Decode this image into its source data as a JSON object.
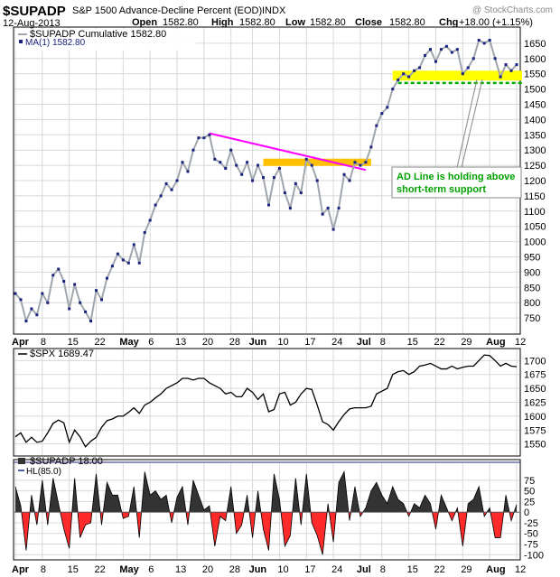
{
  "header": {
    "symbol": "$SUPADP",
    "description": "S&P 1500 Advance-Decline Percent (EOD)",
    "exchange": "INDX",
    "watermark": "@ StockCharts.com",
    "date": "12-Aug-2013",
    "open_label": "Open",
    "open": "1582.80",
    "high_label": "High",
    "high": "1582.80",
    "low_label": "Low",
    "low": "1582.80",
    "close_label": "Close",
    "close": "1582.80",
    "chg_label": "Chg",
    "chg": "+18.00 (+1.15%)"
  },
  "panels": {
    "main": {
      "legend1": "$SUPADP  Cumulative 1582.80",
      "legend2": "MA(1) 1582.80",
      "annotation_line1": "AD Line is holding above",
      "annotation_line2": "short-term support"
    },
    "spx": {
      "legend": "$SPX  1689.47"
    },
    "hl": {
      "legend1": "$SUPADP  18.00",
      "legend2": "HL(85.0)"
    }
  },
  "colors": {
    "line": "#a0a6ad",
    "marker": "#1a237e",
    "trendline": "#ff00ff",
    "resistance_box": "#ffc000",
    "support_box": "#ffff00",
    "support_line": "#00aa00",
    "annotation_text": "#00a000",
    "hl_positive": "#333333",
    "hl_negative": "#ff2a2a",
    "panel_border": "#000000",
    "grid": "#d8d8d8"
  },
  "chart_data": [
    {
      "type": "line",
      "title": "$SUPADP S&P 1500 Advance-Decline Percent (EOD)",
      "ylim": [
        700,
        1700
      ],
      "y_ticks": [
        750,
        800,
        850,
        900,
        950,
        1000,
        1050,
        1100,
        1150,
        1200,
        1250,
        1300,
        1350,
        1400,
        1450,
        1500,
        1550,
        1600,
        1650
      ],
      "x_tick_labels": [
        "Apr",
        "8",
        "15",
        "22",
        "May",
        "6",
        "13",
        "20",
        "28",
        "Jun",
        "10",
        "17",
        "24",
        "Jul",
        "8",
        "15",
        "22",
        "29",
        "Aug",
        "12"
      ],
      "x_tick_index": [
        0,
        5,
        10,
        15,
        20,
        25,
        30,
        35,
        40,
        44,
        49,
        54,
        59,
        64,
        68,
        73,
        78,
        83,
        88,
        93
      ],
      "bold_labels": [
        "Apr",
        "May",
        "Jun",
        "Jul",
        "Aug"
      ],
      "series": [
        {
          "values": [
            830,
            810,
            740,
            780,
            760,
            830,
            800,
            890,
            910,
            870,
            780,
            860,
            800,
            770,
            740,
            840,
            810,
            880,
            920,
            960,
            940,
            930,
            990,
            930,
            1030,
            1070,
            1120,
            1150,
            1190,
            1170,
            1200,
            1260,
            1230,
            1300,
            1340,
            1340,
            1350,
            1270,
            1260,
            1240,
            1300,
            1250,
            1220,
            1260,
            1200,
            1250,
            1210,
            1120,
            1210,
            1240,
            1160,
            1110,
            1190,
            1160,
            1270,
            1250,
            1200,
            1090,
            1110,
            1040,
            1110,
            1220,
            1200,
            1260,
            1250,
            1260,
            1310,
            1380,
            1420,
            1440,
            1500,
            1530,
            1550,
            1540,
            1560,
            1570,
            1610,
            1630,
            1590,
            1630,
            1640,
            1620,
            1630,
            1550,
            1570,
            1600,
            1660,
            1650,
            1660,
            1600,
            1540,
            1580,
            1560,
            1580
          ]
        }
      ],
      "annotations": [
        {
          "type": "trendline",
          "from": [
            36,
            1355
          ],
          "to": [
            65,
            1235
          ]
        },
        {
          "type": "zone",
          "x_range": [
            46,
            66
          ],
          "y_range": [
            1248,
            1272
          ]
        },
        {
          "type": "zone",
          "x_range": [
            70,
            94
          ],
          "y_range": [
            1528,
            1560
          ]
        },
        {
          "type": "hline",
          "value": 1520,
          "x_range": [
            71,
            94
          ]
        },
        {
          "text": "AD Line is holding above short-term support"
        }
      ]
    },
    {
      "type": "line",
      "title": "$SPX",
      "ylim": [
        1530,
        1720
      ],
      "y_ticks": [
        1550,
        1575,
        1600,
        1625,
        1650,
        1675,
        1700
      ],
      "series": [
        {
          "name": "$SPX",
          "values": [
            1563,
            1570,
            1553,
            1562,
            1553,
            1555,
            1570,
            1587,
            1593,
            1588,
            1553,
            1575,
            1563,
            1545,
            1555,
            1562,
            1580,
            1592,
            1595,
            1600,
            1600,
            1607,
            1615,
            1605,
            1620,
            1625,
            1633,
            1640,
            1650,
            1655,
            1660,
            1668,
            1668,
            1665,
            1668,
            1668,
            1660,
            1655,
            1650,
            1640,
            1643,
            1635,
            1635,
            1650,
            1643,
            1630,
            1640,
            1608,
            1612,
            1640,
            1643,
            1620,
            1625,
            1640,
            1650,
            1648,
            1620,
            1590,
            1585,
            1575,
            1590,
            1603,
            1613,
            1615,
            1615,
            1615,
            1618,
            1640,
            1645,
            1650,
            1675,
            1680,
            1682,
            1675,
            1680,
            1690,
            1692,
            1695,
            1690,
            1685,
            1685,
            1690,
            1685,
            1688,
            1690,
            1690,
            1700,
            1710,
            1709,
            1700,
            1690,
            1695,
            1690,
            1689
          ]
        }
      ]
    },
    {
      "type": "bar",
      "title": "$SUPADP HL(85.0)",
      "ylim": [
        -110,
        115
      ],
      "y_ticks": [
        -100,
        -75,
        -50,
        -25,
        0,
        25,
        50,
        75
      ],
      "series": [
        {
          "name": "$SUPADP",
          "values": [
            60,
            15,
            -90,
            40,
            -30,
            75,
            -30,
            80,
            20,
            -40,
            -85,
            80,
            -60,
            -30,
            -25,
            90,
            -30,
            70,
            40,
            40,
            -15,
            -10,
            60,
            -60,
            95,
            40,
            50,
            30,
            40,
            -25,
            35,
            60,
            -30,
            75,
            40,
            5,
            15,
            -80,
            -10,
            -20,
            60,
            -50,
            -30,
            40,
            -60,
            50,
            -40,
            -90,
            90,
            30,
            -80,
            -55,
            80,
            -30,
            90,
            -25,
            -55,
            -100,
            20,
            -70,
            70,
            95,
            -20,
            60,
            -10,
            10,
            50,
            70,
            40,
            20,
            60,
            30,
            20,
            -10,
            20,
            10,
            40,
            20,
            -40,
            40,
            10,
            -20,
            10,
            -80,
            20,
            30,
            60,
            -10,
            10,
            -60,
            -60,
            40,
            -20,
            18
          ]
        }
      ]
    }
  ]
}
